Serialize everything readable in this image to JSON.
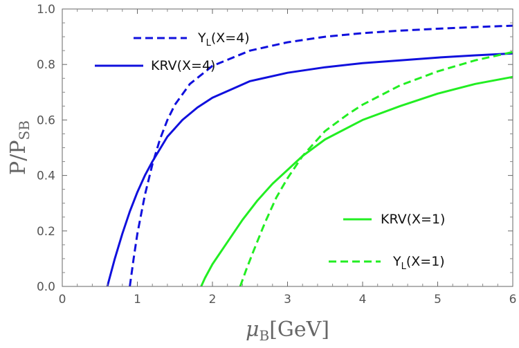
{
  "chart_data": {
    "type": "line",
    "xlabel": {
      "main": "μ",
      "sub": "B",
      "unit": "[GeV]"
    },
    "ylabel": {
      "main": "P/P",
      "sub": "SB"
    },
    "xlim": [
      0,
      6
    ],
    "ylim": [
      0,
      1.0
    ],
    "x_ticks": [
      "0",
      "1",
      "2",
      "3",
      "4",
      "5",
      "6"
    ],
    "y_ticks": [
      "0.0",
      "0.2",
      "0.4",
      "0.6",
      "0.8",
      "1.0"
    ],
    "grid": false,
    "series": [
      {
        "name": "Y_L(X=4)",
        "label_main": "Y",
        "label_sub": "L",
        "label_rest": "(X=4)",
        "color": "#1010dd",
        "dash": true,
        "x": [
          0.9,
          0.95,
          1.0,
          1.1,
          1.2,
          1.3,
          1.4,
          1.5,
          1.7,
          2.0,
          2.5,
          3.0,
          3.5,
          4.0,
          4.5,
          5.0,
          5.5,
          6.0
        ],
        "y": [
          0.0,
          0.1,
          0.19,
          0.33,
          0.44,
          0.53,
          0.6,
          0.655,
          0.73,
          0.795,
          0.85,
          0.88,
          0.9,
          0.913,
          0.922,
          0.929,
          0.935,
          0.94
        ]
      },
      {
        "name": "KRV(X=4)",
        "label_main": "KRV(X=4)",
        "label_sub": "",
        "label_rest": "",
        "color": "#1010dd",
        "dash": false,
        "x": [
          0.6,
          0.65,
          0.7,
          0.8,
          0.9,
          1.0,
          1.1,
          1.2,
          1.4,
          1.6,
          1.8,
          2.0,
          2.5,
          3.0,
          3.5,
          4.0,
          4.5,
          5.0,
          5.5,
          6.0
        ],
        "y": [
          0.0,
          0.05,
          0.1,
          0.19,
          0.27,
          0.34,
          0.4,
          0.45,
          0.54,
          0.6,
          0.645,
          0.68,
          0.74,
          0.77,
          0.79,
          0.805,
          0.815,
          0.825,
          0.833,
          0.84
        ]
      },
      {
        "name": "KRV(X=1)",
        "label_main": "KRV(X=1)",
        "label_sub": "",
        "label_rest": "",
        "color": "#22ee22",
        "dash": false,
        "x": [
          1.85,
          1.9,
          2.0,
          2.2,
          2.4,
          2.6,
          2.8,
          3.0,
          3.2,
          3.5,
          4.0,
          4.5,
          5.0,
          5.5,
          6.0
        ],
        "y": [
          0.0,
          0.03,
          0.08,
          0.16,
          0.24,
          0.31,
          0.37,
          0.42,
          0.47,
          0.53,
          0.6,
          0.65,
          0.695,
          0.73,
          0.755
        ]
      },
      {
        "name": "Y_L(X=1)",
        "label_main": "Y",
        "label_sub": "L",
        "label_rest": "(X=1)",
        "color": "#22ee22",
        "dash": true,
        "x": [
          2.37,
          2.45,
          2.55,
          2.7,
          2.85,
          3.0,
          3.2,
          3.5,
          3.8,
          4.0,
          4.5,
          5.0,
          5.5,
          6.0
        ],
        "y": [
          0.0,
          0.06,
          0.13,
          0.23,
          0.32,
          0.39,
          0.47,
          0.56,
          0.62,
          0.655,
          0.725,
          0.775,
          0.815,
          0.845
        ]
      }
    ]
  }
}
